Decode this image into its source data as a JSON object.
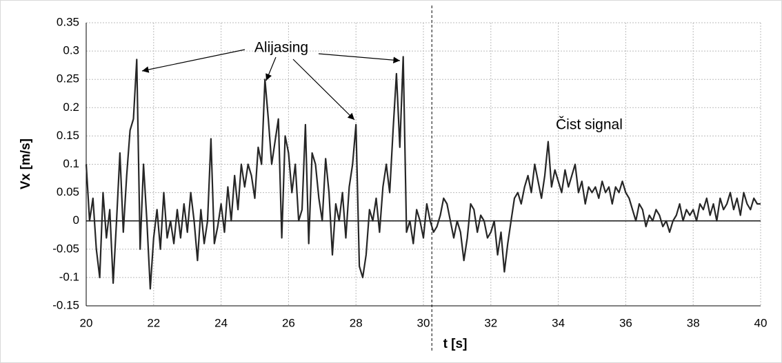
{
  "chart_data": {
    "type": "line",
    "x_label": "t [s]",
    "y_label": "Vx [m/s]",
    "annotations": [
      "Alijasing",
      "Čist signal"
    ],
    "xlim": [
      20,
      40
    ],
    "xticks": [
      20,
      22,
      24,
      26,
      28,
      30,
      32,
      34,
      36,
      38,
      40
    ],
    "ylim": [
      -0.15,
      0.35
    ],
    "yticks": [
      -0.15,
      -0.1,
      -0.05,
      0,
      0.05,
      0.1,
      0.15,
      0.2,
      0.25,
      0.3,
      0.35
    ],
    "grid": true,
    "vline": 30.25,
    "series": [
      {
        "name": "Vx",
        "color": "#262626",
        "x": [
          20,
          20.1,
          20.2,
          20.3,
          20.4,
          20.5,
          20.6,
          20.7,
          20.8,
          20.9,
          21,
          21.1,
          21.2,
          21.3,
          21.4,
          21.5,
          21.6,
          21.7,
          21.8,
          21.9,
          22,
          22.1,
          22.2,
          22.3,
          22.4,
          22.5,
          22.6,
          22.7,
          22.8,
          22.9,
          23,
          23.1,
          23.2,
          23.3,
          23.4,
          23.5,
          23.6,
          23.7,
          23.8,
          23.9,
          24,
          24.1,
          24.2,
          24.3,
          24.4,
          24.5,
          24.6,
          24.7,
          24.8,
          24.9,
          25,
          25.1,
          25.2,
          25.3,
          25.4,
          25.5,
          25.6,
          25.7,
          25.8,
          25.9,
          26,
          26.1,
          26.2,
          26.3,
          26.4,
          26.5,
          26.6,
          26.7,
          26.8,
          26.9,
          27,
          27.1,
          27.2,
          27.3,
          27.4,
          27.5,
          27.6,
          27.7,
          27.8,
          27.9,
          28,
          28.1,
          28.2,
          28.3,
          28.4,
          28.5,
          28.6,
          28.7,
          28.8,
          28.9,
          29,
          29.1,
          29.2,
          29.3,
          29.4,
          29.5,
          29.6,
          29.7,
          29.8,
          29.9,
          30,
          30.1,
          30.2,
          30.3,
          30.4,
          30.5,
          30.6,
          30.7,
          30.8,
          30.9,
          31,
          31.1,
          31.2,
          31.3,
          31.4,
          31.5,
          31.6,
          31.7,
          31.8,
          31.9,
          32,
          32.1,
          32.2,
          32.3,
          32.4,
          32.5,
          32.6,
          32.7,
          32.8,
          32.9,
          33,
          33.1,
          33.2,
          33.3,
          33.4,
          33.5,
          33.6,
          33.7,
          33.8,
          33.9,
          34,
          34.1,
          34.2,
          34.3,
          34.4,
          34.5,
          34.6,
          34.7,
          34.8,
          34.9,
          35,
          35.1,
          35.2,
          35.3,
          35.4,
          35.5,
          35.6,
          35.7,
          35.8,
          35.9,
          36,
          36.1,
          36.2,
          36.3,
          36.4,
          36.5,
          36.6,
          36.7,
          36.8,
          36.9,
          37,
          37.1,
          37.2,
          37.3,
          37.4,
          37.5,
          37.6,
          37.7,
          37.8,
          37.9,
          38,
          38.1,
          38.2,
          38.3,
          38.4,
          38.5,
          38.6,
          38.7,
          38.8,
          38.9,
          39,
          39.1,
          39.2,
          39.3,
          39.4,
          39.5,
          39.6,
          39.7,
          39.8,
          39.9,
          40
        ],
        "values": [
          0.1,
          0.0,
          0.04,
          -0.05,
          -0.1,
          0.05,
          -0.03,
          0.02,
          -0.11,
          0.0,
          0.12,
          -0.02,
          0.08,
          0.16,
          0.18,
          0.285,
          -0.05,
          0.1,
          0.0,
          -0.12,
          -0.03,
          0.02,
          -0.05,
          0.05,
          -0.03,
          0.0,
          -0.04,
          0.02,
          -0.03,
          0.03,
          -0.02,
          0.05,
          0.0,
          -0.07,
          0.02,
          -0.04,
          0.0,
          0.145,
          -0.04,
          -0.01,
          0.03,
          -0.02,
          0.06,
          0.0,
          0.08,
          0.02,
          0.1,
          0.06,
          0.1,
          0.08,
          0.04,
          0.13,
          0.1,
          0.25,
          0.18,
          0.1,
          0.14,
          0.18,
          -0.03,
          0.15,
          0.12,
          0.05,
          0.1,
          0.0,
          0.02,
          0.17,
          -0.04,
          0.12,
          0.1,
          0.04,
          0.0,
          0.11,
          0.05,
          -0.06,
          0.03,
          0.0,
          0.05,
          -0.03,
          0.06,
          0.1,
          0.17,
          -0.08,
          -0.1,
          -0.06,
          0.02,
          0.0,
          0.04,
          -0.02,
          0.06,
          0.1,
          0.05,
          0.16,
          0.26,
          0.13,
          0.29,
          -0.02,
          0.0,
          -0.04,
          0.02,
          0.0,
          -0.03,
          0.03,
          0.0,
          -0.02,
          -0.01,
          0.01,
          0.04,
          0.03,
          0.0,
          -0.03,
          0.0,
          -0.02,
          -0.07,
          -0.03,
          0.03,
          0.02,
          -0.02,
          0.01,
          0.0,
          -0.03,
          -0.02,
          0.0,
          -0.06,
          -0.02,
          -0.09,
          -0.04,
          0.0,
          0.04,
          0.05,
          0.03,
          0.06,
          0.08,
          0.05,
          0.1,
          0.07,
          0.04,
          0.08,
          0.14,
          0.06,
          0.09,
          0.07,
          0.05,
          0.09,
          0.06,
          0.08,
          0.1,
          0.05,
          0.07,
          0.03,
          0.06,
          0.05,
          0.06,
          0.04,
          0.07,
          0.05,
          0.06,
          0.03,
          0.06,
          0.05,
          0.07,
          0.05,
          0.04,
          0.02,
          0.0,
          0.03,
          0.02,
          -0.01,
          0.01,
          0.0,
          0.02,
          0.01,
          -0.01,
          0.0,
          -0.02,
          0.0,
          0.01,
          0.03,
          0.0,
          0.02,
          0.01,
          0.02,
          0.0,
          0.03,
          0.02,
          0.04,
          0.01,
          0.03,
          0.0,
          0.04,
          0.02,
          0.03,
          0.05,
          0.02,
          0.04,
          0.01,
          0.05,
          0.03,
          0.02,
          0.04,
          0.03,
          0.03
        ]
      }
    ]
  }
}
